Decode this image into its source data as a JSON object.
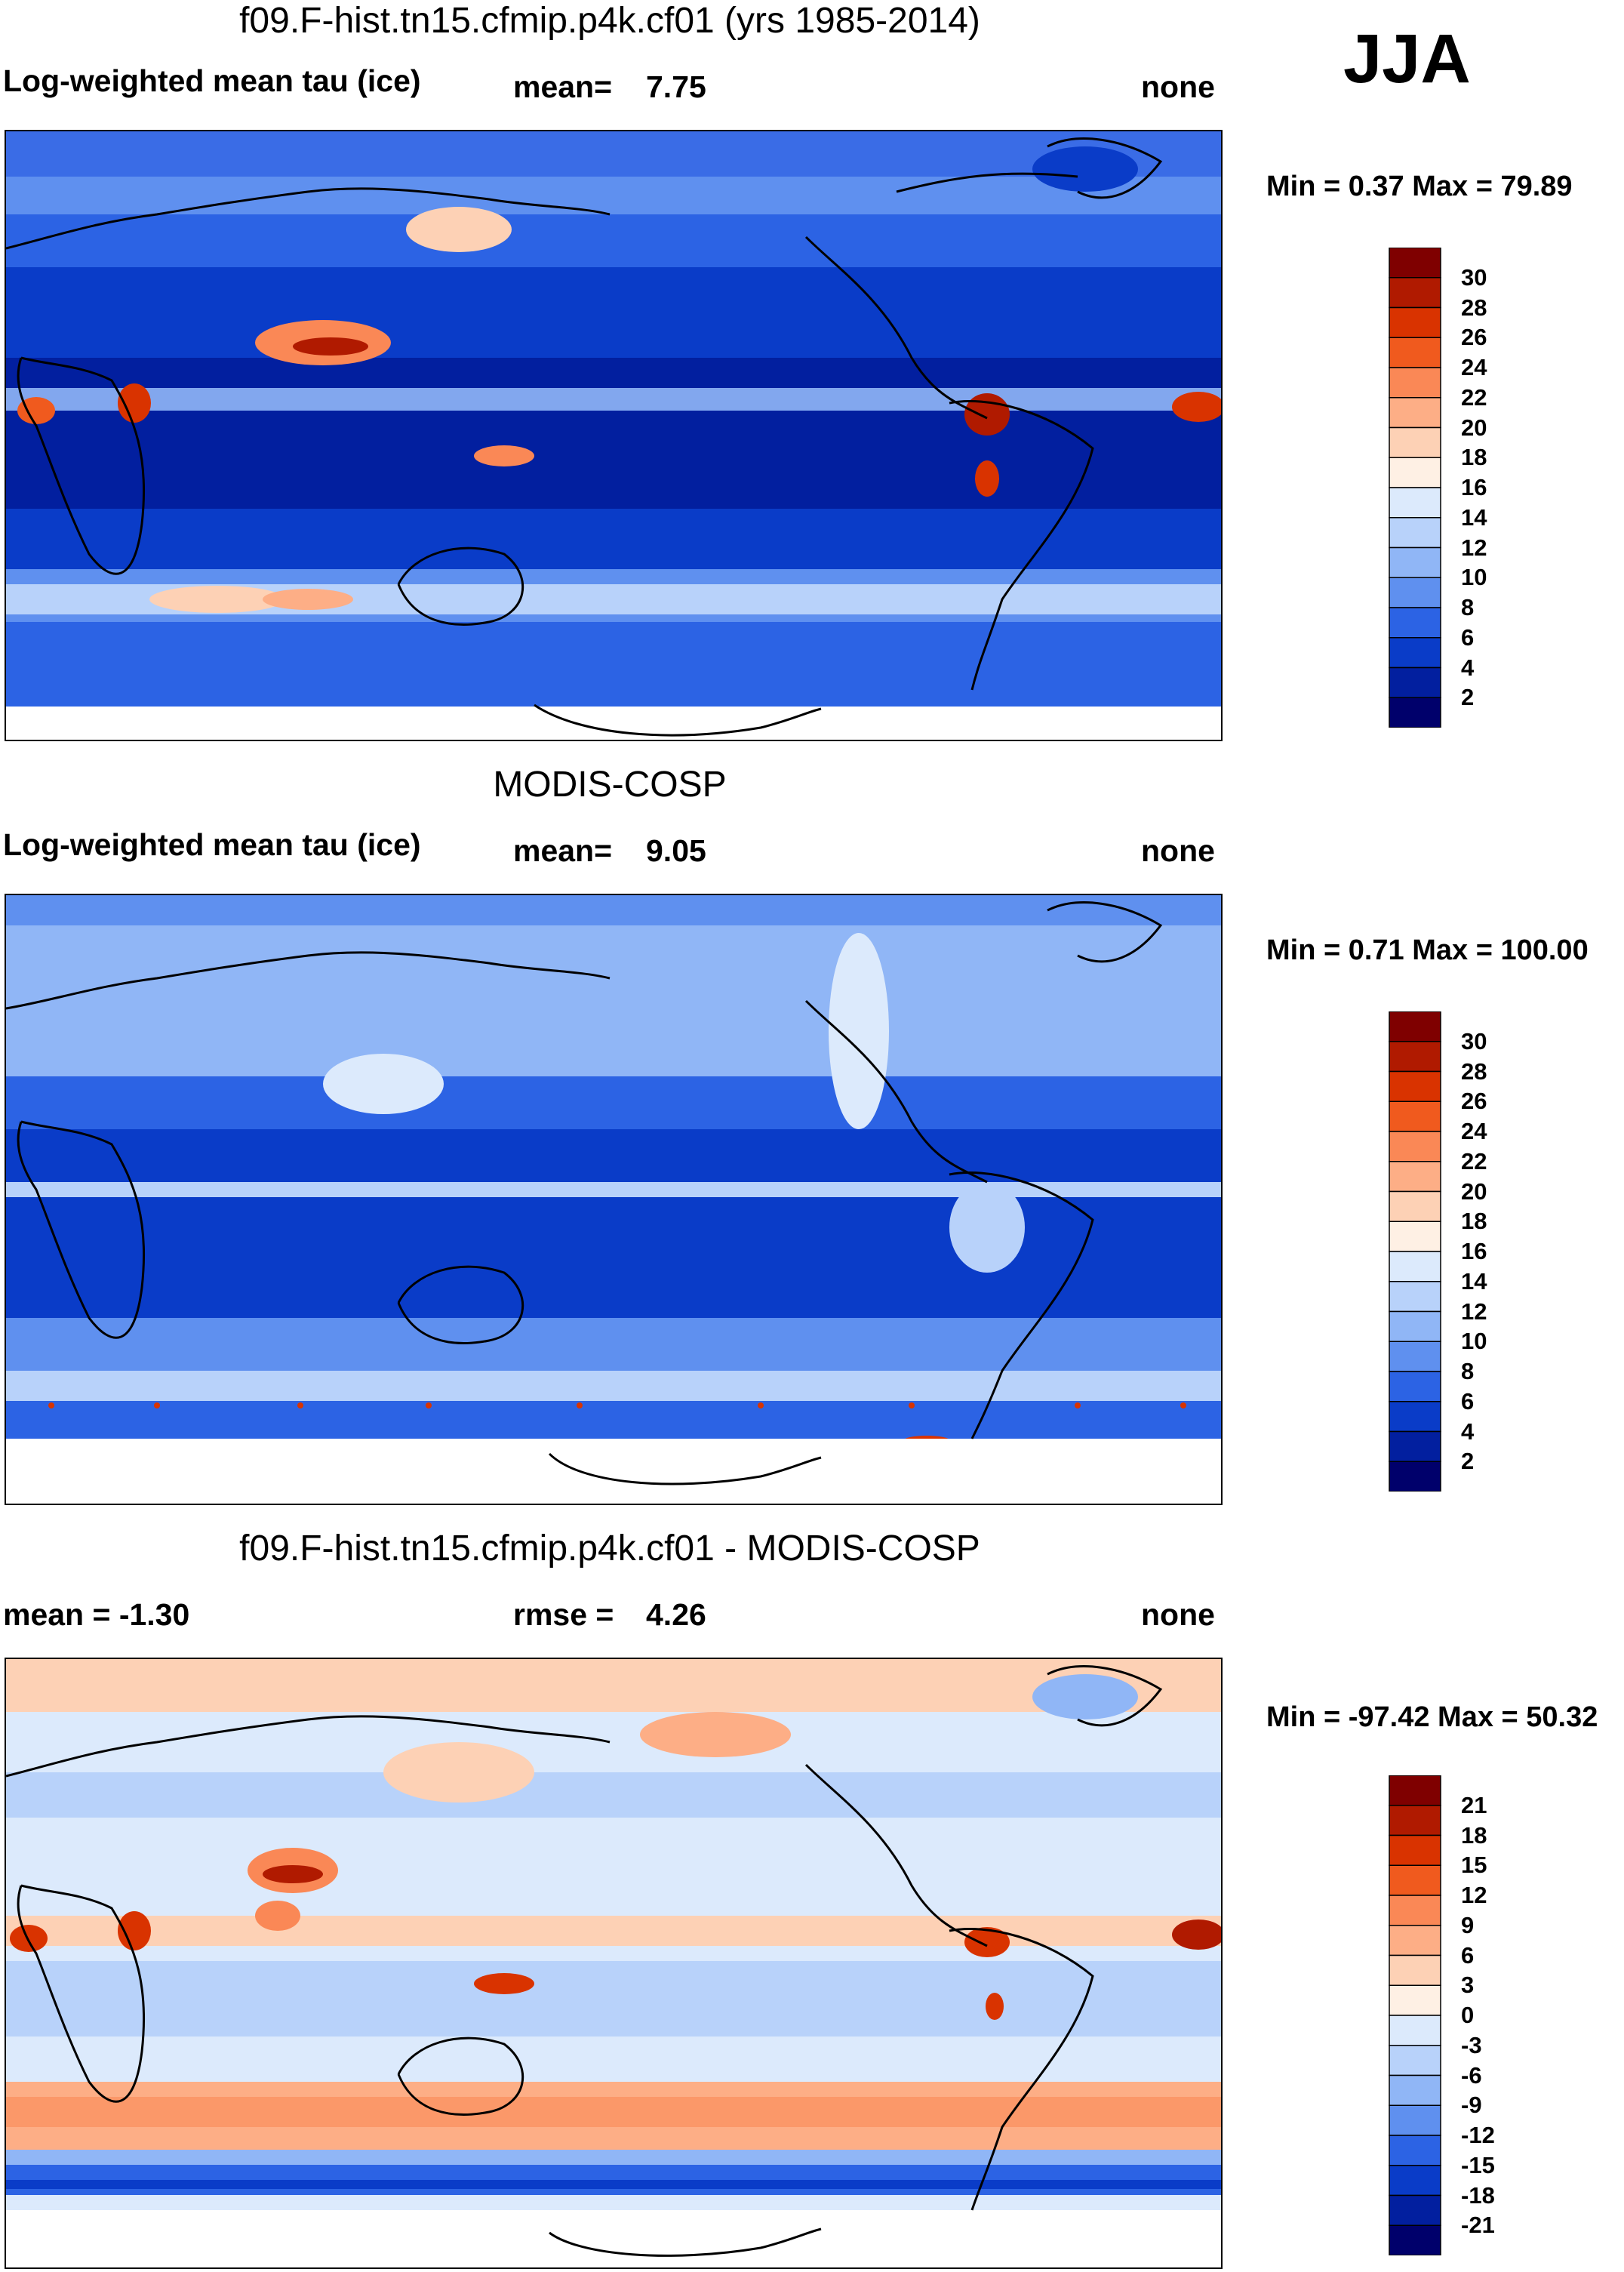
{
  "season": "JJA",
  "panels": [
    {
      "id": "model",
      "title": "f09.F-hist.tn15.cfmip.p4k.cf01 (yrs 1985-2014)",
      "left_label": "Log-weighted mean tau (ice)",
      "stat_label": "mean=",
      "stat_value": "7.75",
      "right_label": "none",
      "minmax": "Min =   0.37 Max =  79.89",
      "colorbar": {
        "labels": [
          "30",
          "28",
          "26",
          "24",
          "22",
          "20",
          "18",
          "16",
          "14",
          "12",
          "10",
          "8",
          "6",
          "4",
          "2"
        ],
        "colors": [
          "#7f0000",
          "#b01a00",
          "#d93300",
          "#f05a1e",
          "#fa8856",
          "#fdae86",
          "#fdd1b5",
          "#fef0e4",
          "#dceafc",
          "#b8d2fa",
          "#90b6f6",
          "#5f90ef",
          "#2c63e4",
          "#0a3cc8",
          "#021f9f",
          "#00006b"
        ]
      }
    },
    {
      "id": "obs",
      "title": "MODIS-COSP",
      "left_label": "Log-weighted mean tau (ice)",
      "stat_label": "mean=",
      "stat_value": "9.05",
      "right_label": "none",
      "minmax": "Min =   0.71 Max = 100.00",
      "colorbar": {
        "labels": [
          "30",
          "28",
          "26",
          "24",
          "22",
          "20",
          "18",
          "16",
          "14",
          "12",
          "10",
          "8",
          "6",
          "4",
          "2"
        ],
        "colors": [
          "#7f0000",
          "#b01a00",
          "#d93300",
          "#f05a1e",
          "#fa8856",
          "#fdae86",
          "#fdd1b5",
          "#fef0e4",
          "#dceafc",
          "#b8d2fa",
          "#90b6f6",
          "#5f90ef",
          "#2c63e4",
          "#0a3cc8",
          "#021f9f",
          "#00006b"
        ]
      }
    },
    {
      "id": "diff",
      "title": "f09.F-hist.tn15.cfmip.p4k.cf01 - MODIS-COSP",
      "left_label": "mean =  -1.30",
      "stat_label": "rmse =",
      "stat_value": "4.26",
      "right_label": "none",
      "minmax": "Min = -97.42 Max =  50.32",
      "colorbar": {
        "labels": [
          "21",
          "18",
          "15",
          "12",
          "9",
          "6",
          "3",
          "0",
          "-3",
          "-6",
          "-9",
          "-12",
          "-15",
          "-18",
          "-21"
        ],
        "colors": [
          "#7f0000",
          "#b01a00",
          "#d93300",
          "#f05a1e",
          "#fa8856",
          "#fdae86",
          "#fdd1b5",
          "#fef0e4",
          "#dceafc",
          "#b8d2fa",
          "#90b6f6",
          "#5f90ef",
          "#2c63e4",
          "#0a3cc8",
          "#021f9f",
          "#00006b"
        ]
      }
    }
  ]
}
